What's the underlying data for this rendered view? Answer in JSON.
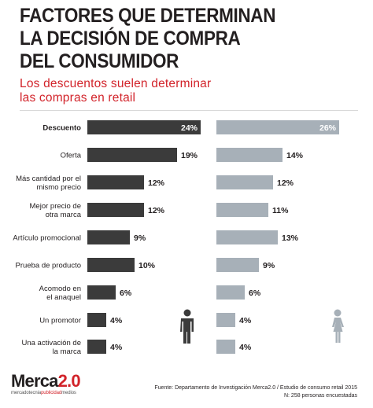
{
  "header": {
    "title_lines": [
      "FACTORES QUE DETERMINAN",
      "LA DECISIÓN DE COMPRA",
      "DEL CONSUMIDOR"
    ],
    "subtitle_lines": [
      "Los descuentos suelen determinar",
      "las compras en retail"
    ]
  },
  "chart_data": {
    "type": "bar",
    "orientation": "horizontal",
    "categories": [
      "Descuento",
      "Oferta",
      "Más cantidad por el mismo precio",
      "Mejor precio de otra marca",
      "Artículo promocional",
      "Prueba de producto",
      "Acomodo en el anaquel",
      "Un promotor",
      "Una activación de la marca"
    ],
    "series": [
      {
        "name": "",
        "values": [
          24,
          19,
          12,
          12,
          9,
          10,
          6,
          4,
          4
        ],
        "color": "#3b3b3b",
        "icon": "man-icon"
      },
      {
        "name": "",
        "values": [
          26,
          14,
          12,
          11,
          13,
          9,
          6,
          4,
          4
        ],
        "color": "#a7b0b8",
        "icon": "woman-icon"
      }
    ],
    "value_suffix": "%",
    "highlight_category": "Descuento",
    "colors": {
      "highlight_label_text": "#ffffff",
      "label_text": "#231f20"
    }
  },
  "footer": {
    "brand_part1": "Merca",
    "brand_part2": "2.0",
    "brand_sub_part1": "mercadotecnia",
    "brand_sub_part2": "publicidad",
    "brand_sub_part3": "medios",
    "source": "Fuente: Departamento de Investigación Merca2.0 / Estudio de consumo retail 2015",
    "sample": "N: 258 personas encuestadas"
  },
  "colors": {
    "accent": "#d2232a",
    "text": "#231f20"
  }
}
